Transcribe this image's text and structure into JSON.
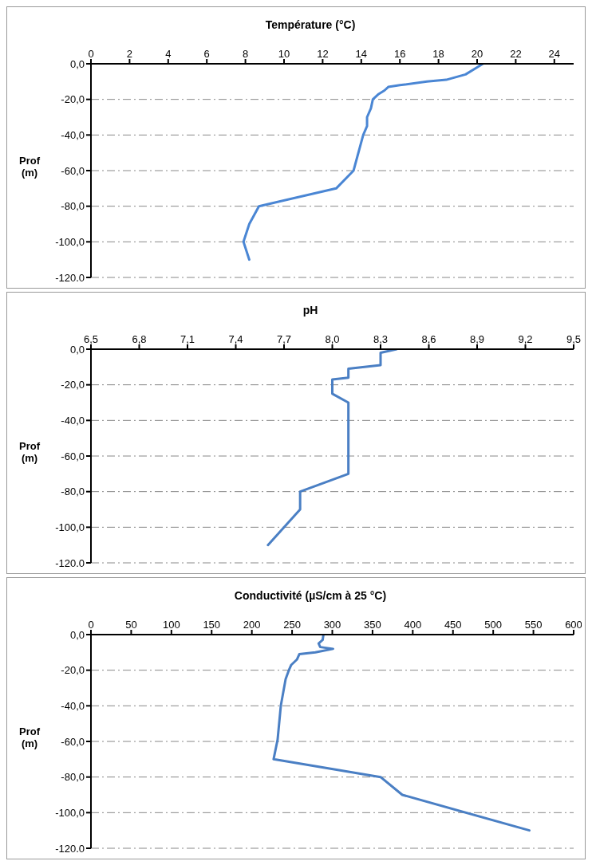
{
  "chart_data": [
    {
      "type": "line",
      "title": "Température (°C)",
      "ylabel": "Prof (m)",
      "grid": "y",
      "line_style": "solid",
      "xlim": [
        0,
        25
      ],
      "xticks": [
        0,
        2,
        4,
        6,
        8,
        10,
        12,
        14,
        16,
        18,
        20,
        22,
        24
      ],
      "ylim": [
        -120,
        0
      ],
      "yticks": [
        {
          "value": 0,
          "label": "0,0"
        },
        {
          "value": -20,
          "label": "-20,0"
        },
        {
          "value": -40,
          "label": "-40,0"
        },
        {
          "value": -60,
          "label": "-60,0"
        },
        {
          "value": -80,
          "label": "-80,0"
        },
        {
          "value": -100,
          "label": "-100,0"
        },
        {
          "value": -120,
          "label": "-120,0"
        }
      ],
      "series": [
        {
          "color": "#4a86d4",
          "x": [
            20.3,
            20.0,
            19.4,
            18.4,
            17.4,
            16.0,
            15.4,
            15.2,
            14.9,
            14.6,
            14.5,
            14.3,
            14.3,
            14.1,
            13.6,
            12.7,
            8.7,
            8.2,
            7.9,
            8.2
          ],
          "values": [
            0,
            -2,
            -6,
            -9,
            -10,
            -12,
            -13,
            -15,
            -17,
            -20,
            -25,
            -30,
            -35,
            -40,
            -60,
            -70,
            -80,
            -90,
            -100,
            -110
          ]
        }
      ]
    },
    {
      "type": "line",
      "title": "pH",
      "ylabel": "Prof (m)",
      "grid": "y",
      "line_style": "solid",
      "xlim": [
        6.5,
        9.5
      ],
      "xticks": [
        {
          "value": 6.5,
          "label": "6,5"
        },
        {
          "value": 6.8,
          "label": "6,8"
        },
        {
          "value": 7.1,
          "label": "7,1"
        },
        {
          "value": 7.4,
          "label": "7,4"
        },
        {
          "value": 7.7,
          "label": "7,7"
        },
        {
          "value": 8.0,
          "label": "8,0"
        },
        {
          "value": 8.3,
          "label": "8,3"
        },
        {
          "value": 8.6,
          "label": "8,6"
        },
        {
          "value": 8.9,
          "label": "8,9"
        },
        {
          "value": 9.2,
          "label": "9,2"
        },
        {
          "value": 9.5,
          "label": "9,5"
        }
      ],
      "ylim": [
        -120,
        0
      ],
      "yticks": [
        {
          "value": 0,
          "label": "0,0"
        },
        {
          "value": -20,
          "label": "-20,0"
        },
        {
          "value": -40,
          "label": "-40,0"
        },
        {
          "value": -60,
          "label": "-60,0"
        },
        {
          "value": -80,
          "label": "-80,0"
        },
        {
          "value": -100,
          "label": "-100,0"
        },
        {
          "value": -120,
          "label": "-120,0"
        }
      ],
      "series": [
        {
          "color": "#4a7fc4",
          "x": [
            8.4,
            8.3,
            8.3,
            8.1,
            8.1,
            8.0,
            8.0,
            8.1,
            8.1,
            7.8,
            7.8,
            7.6
          ],
          "values": [
            0,
            -2,
            -9,
            -11,
            -16,
            -17,
            -25,
            -30,
            -70,
            -80,
            -90,
            -110
          ]
        }
      ]
    },
    {
      "type": "line",
      "title": "Conductivité (µS/cm à 25 °C)",
      "ylabel": "Prof (m)",
      "grid": "y",
      "line_style": "solid",
      "xlim": [
        0,
        600
      ],
      "xticks": [
        0,
        50,
        100,
        150,
        200,
        250,
        300,
        350,
        400,
        450,
        500,
        550,
        600
      ],
      "ylim": [
        -120,
        0
      ],
      "yticks": [
        {
          "value": 0,
          "label": "0,0"
        },
        {
          "value": -20,
          "label": "-20,0"
        },
        {
          "value": -40,
          "label": "-40,0"
        },
        {
          "value": -60,
          "label": "-60,0"
        },
        {
          "value": -80,
          "label": "-80,0"
        },
        {
          "value": -100,
          "label": "-100,0"
        },
        {
          "value": -120,
          "label": "-120,0"
        }
      ],
      "series": [
        {
          "color": "#4a7fc4",
          "x": [
            289,
            288,
            283,
            285,
            301,
            279,
            259,
            256,
            249,
            246,
            242,
            236,
            232,
            227,
            360,
            387,
            545
          ],
          "values": [
            0,
            -3,
            -5,
            -7,
            -8,
            -10,
            -11,
            -14,
            -17,
            -20,
            -25,
            -40,
            -59,
            -70,
            -80,
            -90,
            -110
          ]
        }
      ]
    }
  ]
}
